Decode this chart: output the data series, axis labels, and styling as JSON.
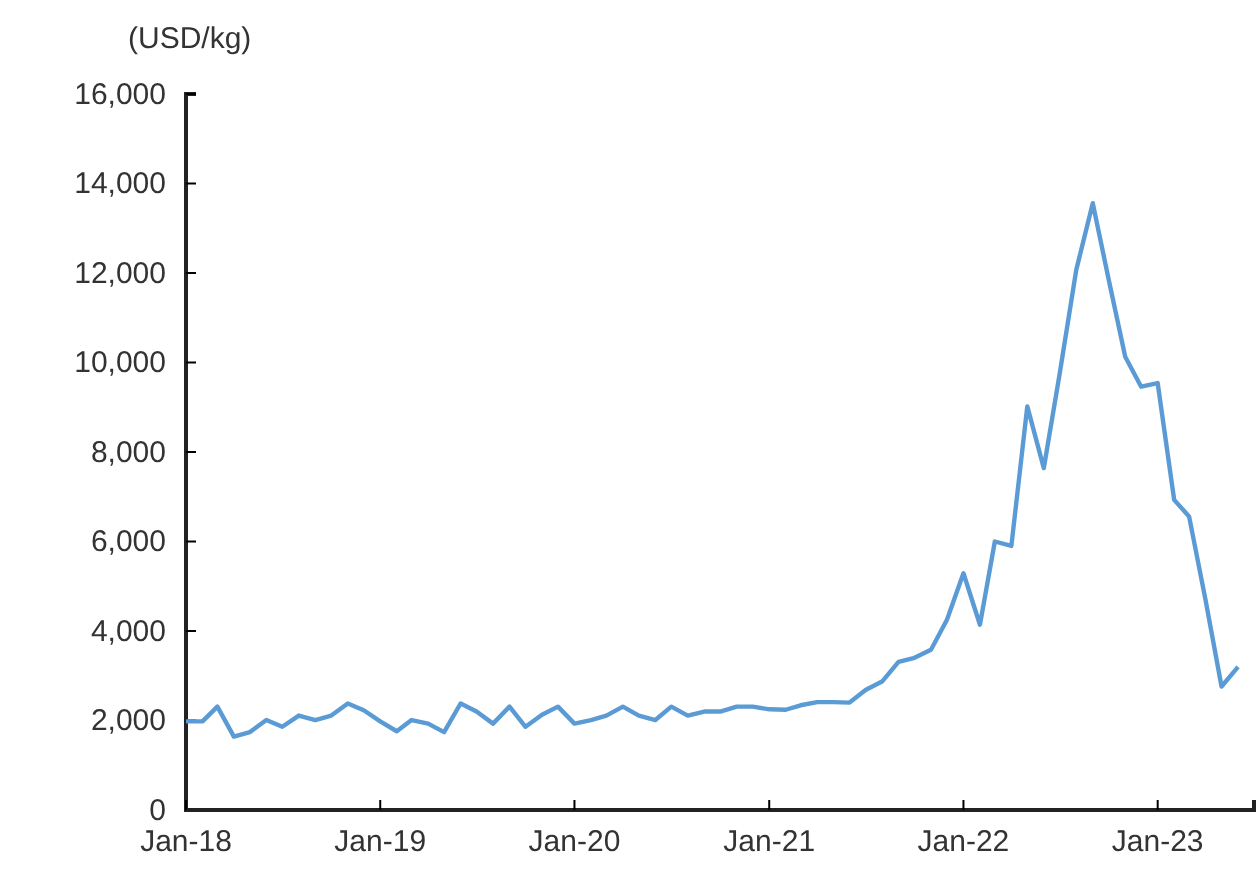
{
  "chart_data": {
    "type": "line",
    "ylabel": "(USD/kg)",
    "x": [
      "2018-01",
      "2018-02",
      "2018-03",
      "2018-04",
      "2018-05",
      "2018-06",
      "2018-07",
      "2018-08",
      "2018-09",
      "2018-10",
      "2018-11",
      "2018-12",
      "2019-01",
      "2019-02",
      "2019-03",
      "2019-04",
      "2019-05",
      "2019-06",
      "2019-07",
      "2019-08",
      "2019-09",
      "2019-10",
      "2019-11",
      "2019-12",
      "2020-01",
      "2020-02",
      "2020-03",
      "2020-04",
      "2020-05",
      "2020-06",
      "2020-07",
      "2020-08",
      "2020-09",
      "2020-10",
      "2020-11",
      "2020-12",
      "2021-01",
      "2021-02",
      "2021-03",
      "2021-04",
      "2021-05",
      "2021-06",
      "2021-07",
      "2021-08",
      "2021-09",
      "2021-10",
      "2021-11",
      "2021-12",
      "2022-01",
      "2022-02",
      "2022-03",
      "2022-04",
      "2022-05",
      "2022-06",
      "2022-07",
      "2022-08",
      "2022-09",
      "2022-10",
      "2022-11",
      "2022-12",
      "2023-01",
      "2023-02",
      "2023-03",
      "2023-04",
      "2023-05",
      "2023-06"
    ],
    "series": [
      {
        "color": "#5b9bd5",
        "values": [
          1980,
          1980,
          2310,
          1640,
          1740,
          2010,
          1860,
          2110,
          2010,
          2110,
          2380,
          2230,
          1980,
          1760,
          2010,
          1930,
          1740,
          2380,
          2200,
          1930,
          2310,
          1860,
          2130,
          2310,
          1930,
          2010,
          2110,
          2310,
          2110,
          2010,
          2310,
          2110,
          2200,
          2200,
          2310,
          2310,
          2250,
          2240,
          2340,
          2410,
          2410,
          2400,
          2680,
          2870,
          3310,
          3400,
          3580,
          4250,
          5290,
          4140,
          6000,
          5900,
          9020,
          7640,
          9760,
          12070,
          13560,
          11850,
          10130,
          9460,
          9540,
          6930,
          6560,
          4690,
          2760,
          3200
        ]
      }
    ],
    "xlim": [
      "2018-01",
      "2023-07"
    ],
    "xticks": [
      {
        "value": "2018-01",
        "label": "Jan-18"
      },
      {
        "value": "2019-01",
        "label": "Jan-19"
      },
      {
        "value": "2020-01",
        "label": "Jan-20"
      },
      {
        "value": "2021-01",
        "label": "Jan-21"
      },
      {
        "value": "2022-01",
        "label": "Jan-22"
      },
      {
        "value": "2023-01",
        "label": "Jan-23"
      }
    ],
    "ylim": [
      0,
      16000
    ],
    "yticks": [
      {
        "value": 0,
        "label": "0"
      },
      {
        "value": 2000,
        "label": "2,000"
      },
      {
        "value": 4000,
        "label": "4,000"
      },
      {
        "value": 6000,
        "label": "6,000"
      },
      {
        "value": 8000,
        "label": "8,000"
      },
      {
        "value": 10000,
        "label": "10,000"
      },
      {
        "value": 12000,
        "label": "12,000"
      },
      {
        "value": 14000,
        "label": "14,000"
      },
      {
        "value": 16000,
        "label": "16,000"
      }
    ],
    "grid": false,
    "marker": "none",
    "line_style": "solid"
  }
}
